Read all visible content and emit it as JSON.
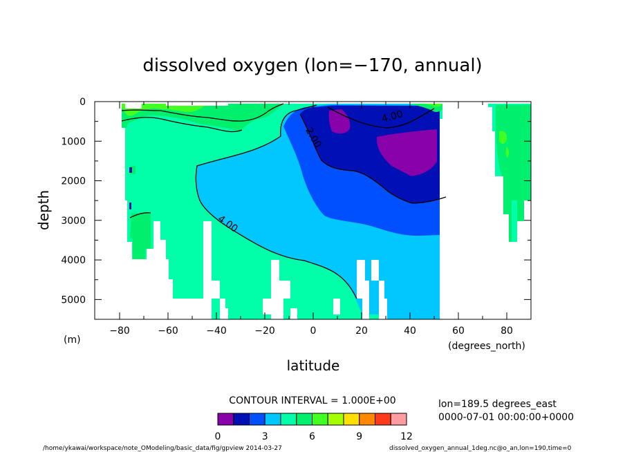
{
  "chart_data": {
    "type": "heatmap",
    "title": "dissolved oxygen (lon=−170, annual)",
    "xlabel": "latitude",
    "ylabel": "depth",
    "x_unit_label": "(degrees_north)",
    "y_unit_label": "(m)",
    "xlim": [
      -90,
      90
    ],
    "ylim": [
      5500,
      0
    ],
    "x_ticks": [
      -80,
      -60,
      -40,
      -20,
      0,
      20,
      40,
      60,
      80
    ],
    "y_ticks": [
      0,
      1000,
      2000,
      3000,
      4000,
      5000
    ],
    "contour_interval_text": "CONTOUR INTERVAL = 1.000E+00",
    "colorbar": {
      "min": 0,
      "max": 12,
      "tick_values": [
        0,
        3,
        6,
        9,
        12
      ],
      "colors": [
        "#8800aa",
        "#0010b4",
        "#0050ff",
        "#00c8ff",
        "#00ffa8",
        "#00f06e",
        "#44ff22",
        "#a4ff00",
        "#ffe000",
        "#ff8800",
        "#ff3a1a",
        "#ff9da0"
      ]
    },
    "contour_labels": [
      {
        "text": "4.00",
        "lat": 33,
        "depth": 450
      },
      {
        "text": "2.00",
        "lat": -1,
        "depth": 950
      },
      {
        "text": "4.00",
        "lat": -36,
        "depth": 3150
      }
    ],
    "info_lines": [
      "lon=189.5 degrees_east",
      "0000-07-01 00:00:00+0000"
    ],
    "footer_left": "/home/ykawai/workspace/note_OModeling/basic_data/fig/gpview  2014-03-27",
    "footer_right": "dissolved_oxygen_annual_1deg.nc@o_an,lon=190,time=0"
  }
}
